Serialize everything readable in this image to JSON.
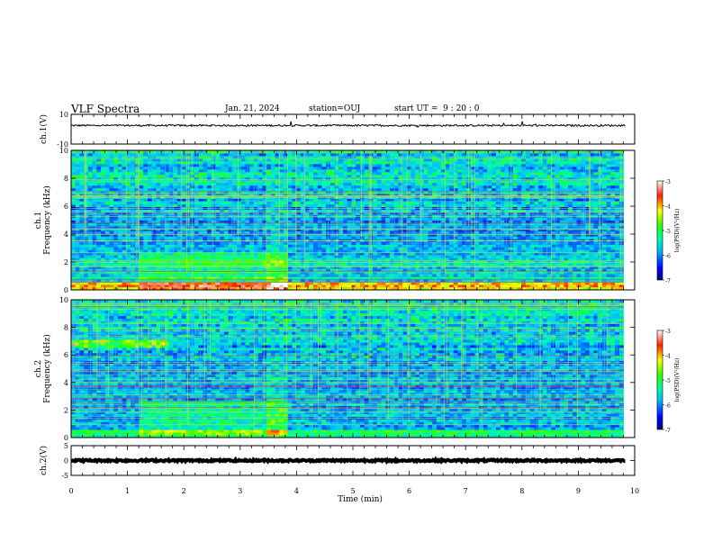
{
  "header": {
    "title": "VLF Spectra",
    "date": "Jan. 21, 2024",
    "station": "station=OUJ",
    "start_ut": "start UT =  9 : 20 : 0"
  },
  "colorbar": {
    "label": "log(PSD)(V²/Hz)",
    "ticks": [
      "-3",
      "-4",
      "-5",
      "-6",
      "-7"
    ]
  },
  "chart_data": [
    {
      "type": "line",
      "panel": "waveform-ch1",
      "ylabel": "ch.1(V)",
      "ylim": [
        -10,
        10
      ],
      "yticks": [
        "10",
        "-10"
      ],
      "series": [
        {
          "mean": 2.5,
          "noise_amplitude": 0.6,
          "color": "#000000"
        }
      ]
    },
    {
      "type": "heatmap",
      "panel": "spectrogram-ch1",
      "ylabel": "ch.1 Frequency (kHz)",
      "ylabel_lines": [
        "ch.1",
        "Frequency (kHz)"
      ],
      "ylim": [
        0,
        10
      ],
      "yticks": [
        "0",
        "2",
        "4",
        "6",
        "8",
        "10"
      ],
      "x_extent_min": [
        0,
        9.8
      ],
      "color_scale": "log(PSD)",
      "zlim": [
        -7,
        -3
      ]
    },
    {
      "type": "heatmap",
      "panel": "spectrogram-ch2",
      "ylabel": "ch.2 Frequency (kHz)",
      "ylabel_lines": [
        "ch.2",
        "Frequency (kHz)"
      ],
      "ylim": [
        0,
        10
      ],
      "yticks": [
        "0",
        "2",
        "4",
        "6",
        "8",
        "10"
      ],
      "x_extent_min": [
        0,
        9.8
      ],
      "color_scale": "log(PSD)",
      "zlim": [
        -7,
        -3
      ]
    },
    {
      "type": "line",
      "panel": "waveform-ch2",
      "ylabel": "ch.2(V)",
      "ylim": [
        -5,
        5
      ],
      "yticks": [
        "5",
        "0",
        "-5"
      ],
      "series": [
        {
          "mean": 0,
          "noise_amplitude": 0.3,
          "color": "#000000"
        }
      ]
    }
  ],
  "xaxis": {
    "label": "Time (min)",
    "xlim": [
      0,
      10
    ],
    "ticks": [
      "0",
      "1",
      "2",
      "3",
      "4",
      "5",
      "6",
      "7",
      "8",
      "9",
      "10"
    ]
  }
}
